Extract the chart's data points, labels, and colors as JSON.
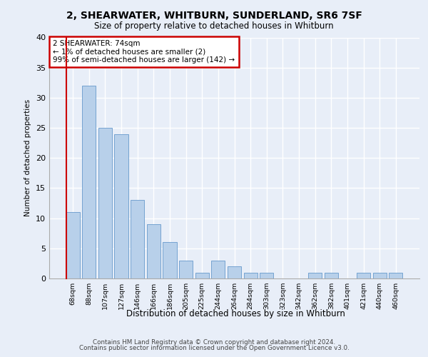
{
  "title_line1": "2, SHEARWATER, WHITBURN, SUNDERLAND, SR6 7SF",
  "title_line2": "Size of property relative to detached houses in Whitburn",
  "xlabel": "Distribution of detached houses by size in Whitburn",
  "ylabel": "Number of detached properties",
  "footer_line1": "Contains HM Land Registry data © Crown copyright and database right 2024.",
  "footer_line2": "Contains public sector information licensed under the Open Government Licence v3.0.",
  "annotation_line1": "2 SHEARWATER: 74sqm",
  "annotation_line2": "← 1% of detached houses are smaller (2)",
  "annotation_line3": "99% of semi-detached houses are larger (142) →",
  "bar_color": "#b8d0ea",
  "bar_edge_color": "#6699cc",
  "background_color": "#e8eef8",
  "grid_color": "#ffffff",
  "annotation_box_edge": "#cc0000",
  "categories": [
    "68sqm",
    "88sqm",
    "107sqm",
    "127sqm",
    "146sqm",
    "166sqm",
    "186sqm",
    "205sqm",
    "225sqm",
    "244sqm",
    "264sqm",
    "284sqm",
    "303sqm",
    "323sqm",
    "342sqm",
    "362sqm",
    "382sqm",
    "401sqm",
    "421sqm",
    "440sqm",
    "460sqm"
  ],
  "values": [
    11,
    32,
    25,
    24,
    13,
    9,
    6,
    3,
    1,
    3,
    2,
    1,
    1,
    0,
    0,
    1,
    1,
    0,
    1,
    1,
    1
  ],
  "ylim": [
    0,
    40
  ],
  "yticks": [
    0,
    5,
    10,
    15,
    20,
    25,
    30,
    35,
    40
  ]
}
